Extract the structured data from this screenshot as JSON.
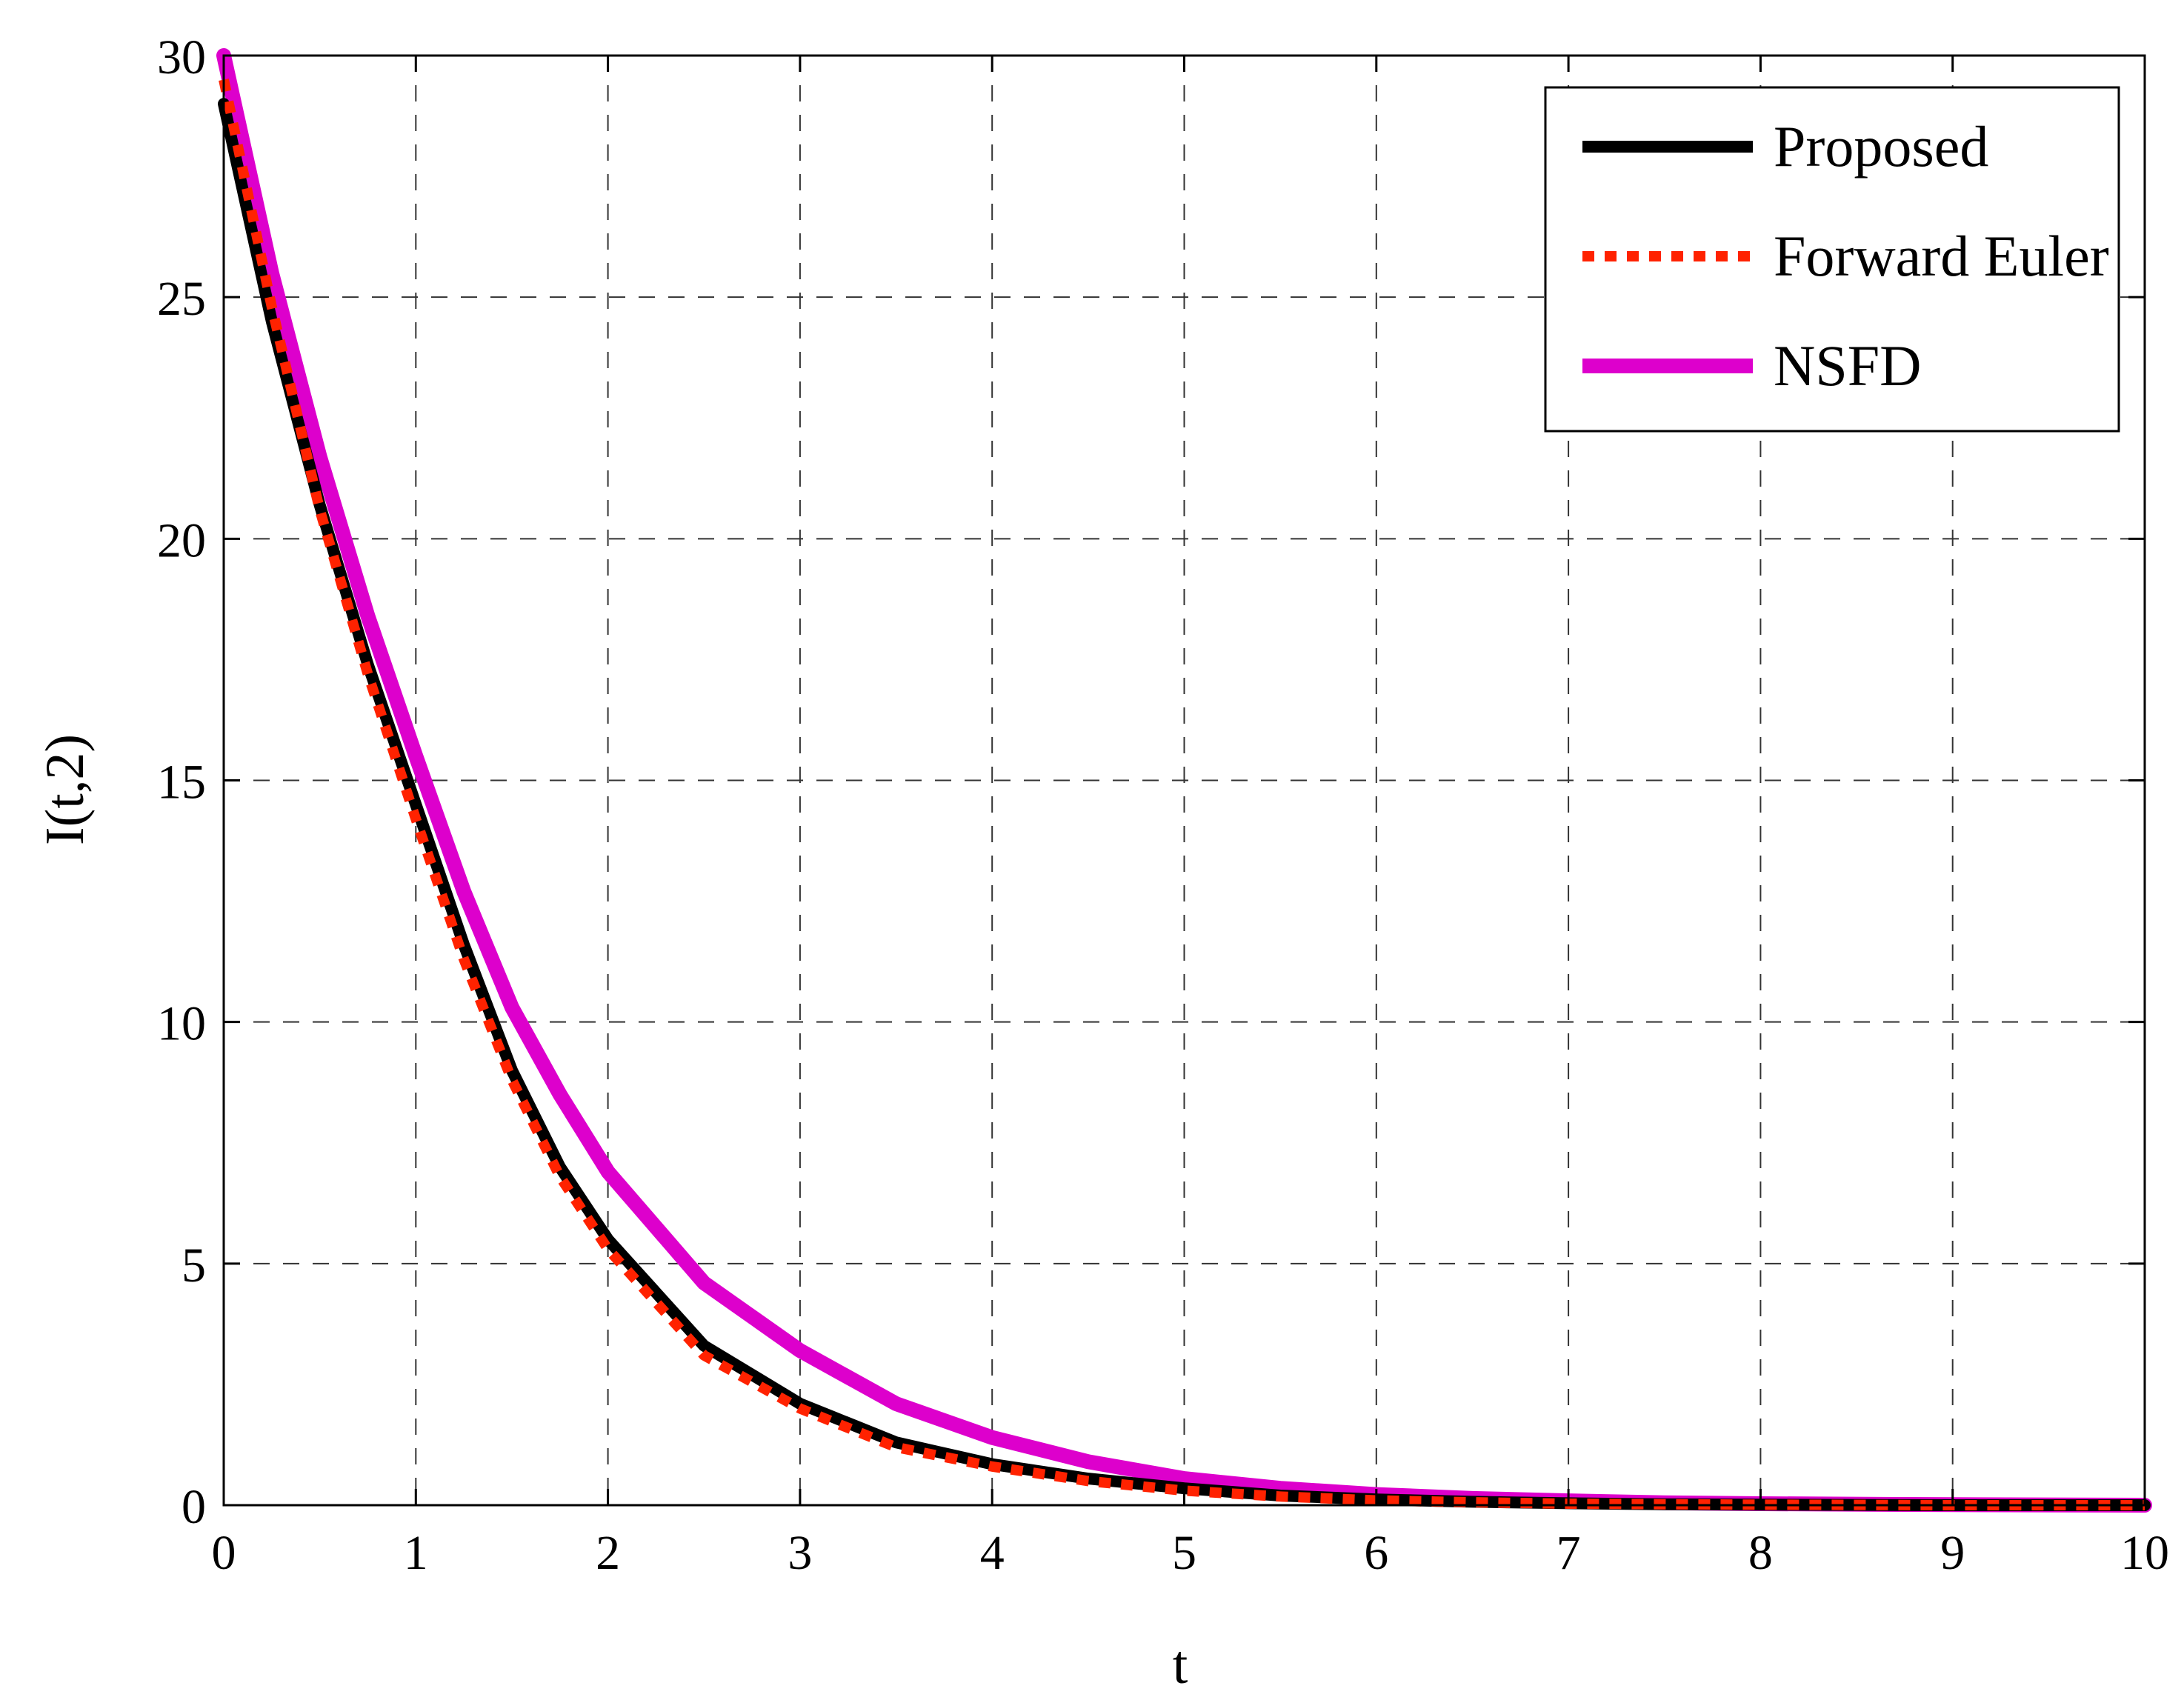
{
  "chart_data": {
    "type": "line",
    "title": "",
    "xlabel": "t",
    "ylabel": "I(t,2)",
    "xlim": [
      0,
      10
    ],
    "ylim": [
      0,
      30
    ],
    "xticks": [
      "0",
      "1",
      "2",
      "3",
      "4",
      "5",
      "6",
      "7",
      "8",
      "9",
      "10"
    ],
    "yticks": [
      "0",
      "5",
      "10",
      "15",
      "20",
      "25",
      "30"
    ],
    "grid": true,
    "legend_position": "top-right",
    "series": [
      {
        "name": "Proposed",
        "color": "#000000",
        "style": "solid",
        "x": [
          0,
          0.25,
          0.5,
          0.75,
          1,
          1.25,
          1.5,
          1.75,
          2,
          2.5,
          3,
          3.5,
          4,
          4.5,
          5,
          5.5,
          6,
          6.5,
          7,
          7.5,
          8,
          9,
          10
        ],
        "y": [
          29.0,
          24.5,
          20.7,
          17.4,
          14.5,
          11.6,
          9.0,
          7.0,
          5.5,
          3.3,
          2.1,
          1.3,
          0.85,
          0.55,
          0.35,
          0.2,
          0.12,
          0.07,
          0.04,
          0.02,
          0.01,
          0.0,
          0.0
        ]
      },
      {
        "name": "Forward Euler",
        "color": "#ff2200",
        "style": "dotted",
        "x": [
          0,
          0.25,
          0.5,
          0.75,
          1,
          1.25,
          1.5,
          1.75,
          2,
          2.5,
          3,
          3.5,
          4,
          4.5,
          5,
          5.5,
          6,
          6.5,
          7,
          7.5,
          8,
          9,
          10
        ],
        "y": [
          29.5,
          24.8,
          20.6,
          17.2,
          14.2,
          11.3,
          8.8,
          6.8,
          5.3,
          3.1,
          2.0,
          1.2,
          0.8,
          0.5,
          0.3,
          0.18,
          0.1,
          0.06,
          0.03,
          0.02,
          0.01,
          0.0,
          0.0
        ]
      },
      {
        "name": "NSFD",
        "color": "#dd00cc",
        "style": "solid",
        "x": [
          0,
          0.25,
          0.5,
          0.75,
          1,
          1.25,
          1.5,
          1.75,
          2,
          2.5,
          3,
          3.5,
          4,
          4.5,
          5,
          5.5,
          6,
          6.5,
          7,
          7.5,
          8,
          9,
          10
        ],
        "y": [
          30.0,
          25.5,
          21.7,
          18.4,
          15.5,
          12.7,
          10.3,
          8.5,
          6.9,
          4.6,
          3.2,
          2.1,
          1.4,
          0.9,
          0.55,
          0.35,
          0.22,
          0.14,
          0.09,
          0.05,
          0.03,
          0.01,
          0.0
        ]
      }
    ]
  }
}
